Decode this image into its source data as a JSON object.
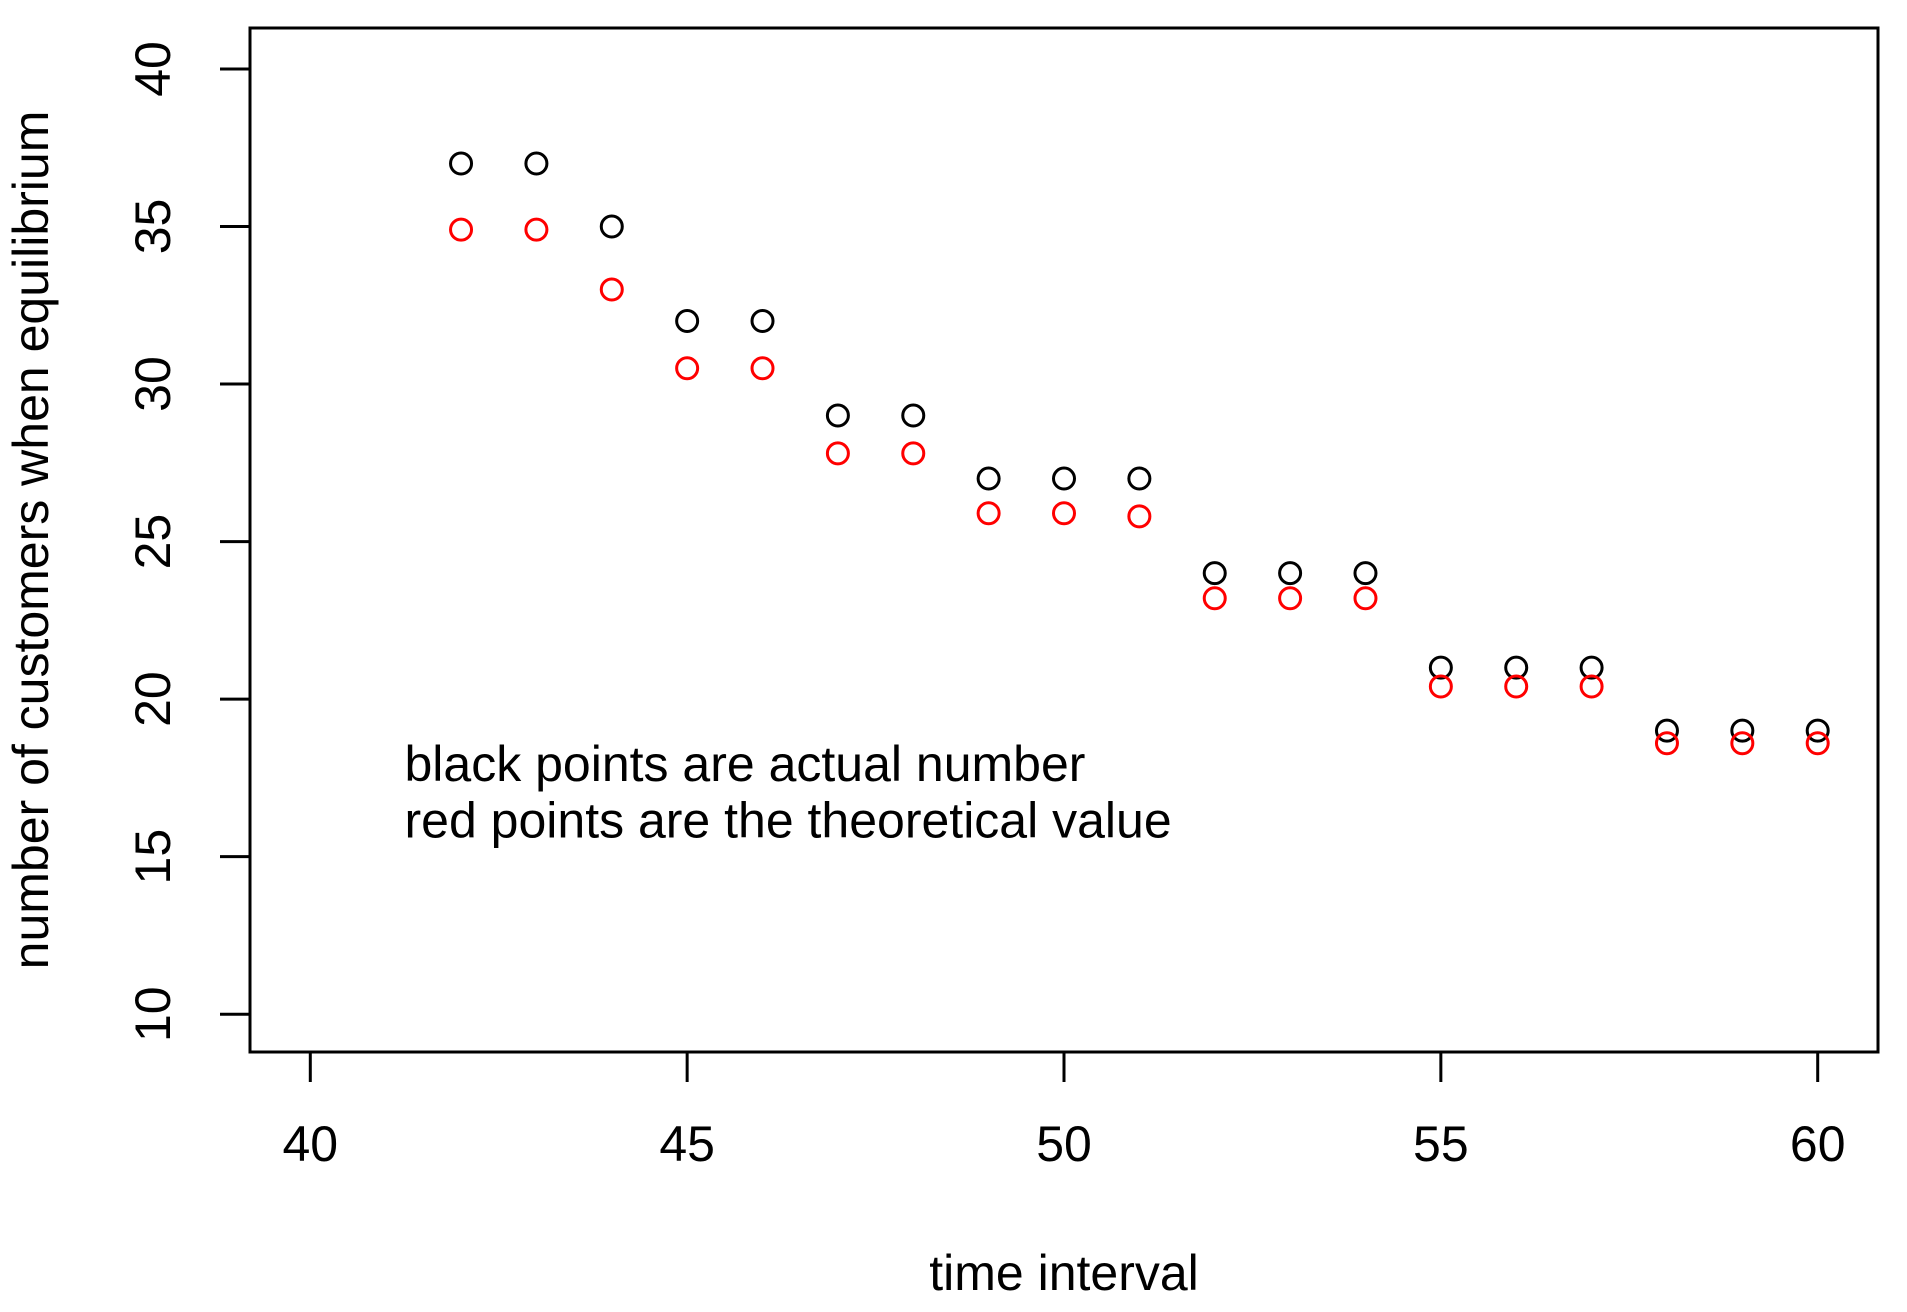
{
  "chart_data": {
    "type": "scatter",
    "title": "",
    "xlabel": "time interval",
    "ylabel": "number of customers when equilibrium",
    "xlim": [
      39.2,
      60.8
    ],
    "ylim": [
      8.8,
      41.3
    ],
    "x_ticks": [
      40,
      45,
      50,
      55,
      60
    ],
    "y_ticks": [
      10,
      15,
      20,
      25,
      30,
      35,
      40
    ],
    "grid": false,
    "legend_position": "none",
    "marker": "open-circle",
    "x": [
      42,
      43,
      44,
      45,
      46,
      47,
      48,
      49,
      50,
      51,
      52,
      53,
      54,
      55,
      56,
      57,
      58,
      59,
      60
    ],
    "series": [
      {
        "name": "actual number",
        "color": "#000000",
        "values": [
          37,
          37,
          35,
          32,
          32,
          29,
          29,
          27,
          27,
          27,
          24,
          24,
          24,
          21,
          21,
          21,
          19,
          19,
          19
        ]
      },
      {
        "name": "theoretical value",
        "color": "#ff0000",
        "values": [
          34.9,
          34.9,
          33,
          30.5,
          30.5,
          27.8,
          27.8,
          25.9,
          25.9,
          25.8,
          23.2,
          23.2,
          23.2,
          20.4,
          20.4,
          20.4,
          18.6,
          18.6,
          18.6
        ]
      }
    ],
    "annotations": [
      {
        "text": "black points are actual number",
        "color": "#000000",
        "x": 41.25,
        "y": 17.4
      },
      {
        "text": "red points are the theoretical value",
        "color": "#ff0000",
        "x": 41.25,
        "y": 15.6
      }
    ]
  }
}
